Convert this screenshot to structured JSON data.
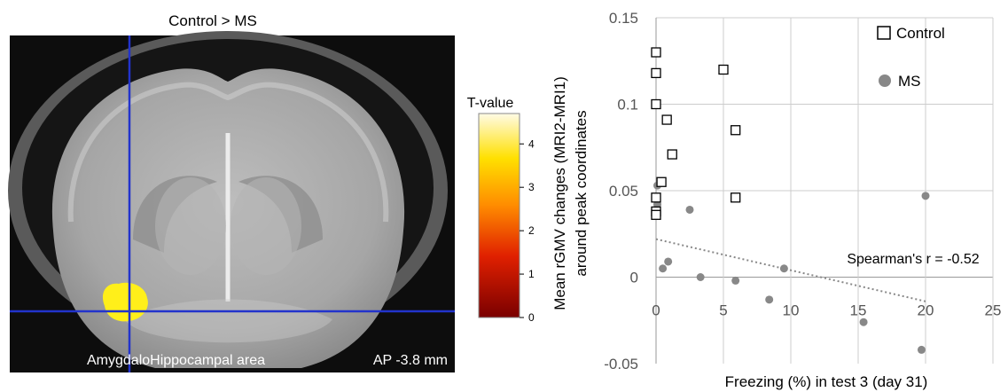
{
  "panel_left": {
    "title": "Control > MS",
    "colorbar": {
      "label": "T-value",
      "ticks": [
        "0",
        "1",
        "2",
        "3",
        "4"
      ],
      "colors": [
        "#7a0000",
        "#e02000",
        "#ff8c00",
        "#ffe000",
        "#fffbe6"
      ]
    },
    "caption_region": "AmygdaloHippocampal area",
    "caption_ap": "AP -3.8 mm",
    "crosshair_color": "#2233cc",
    "blob_color": "#ffef1a"
  },
  "chart_data": {
    "type": "scatter",
    "xlabel": "Freezing (%) in test 3 (day 31)",
    "ylabel_line1": "Mean rGMV changes (MRI2-MRI1)",
    "ylabel_line2": "around peak coordinates",
    "xlim": [
      0,
      25
    ],
    "ylim": [
      -0.05,
      0.15
    ],
    "xticks": [
      0,
      5,
      10,
      15,
      20,
      25
    ],
    "yticks": [
      -0.05,
      0,
      0.05,
      0.1,
      0.15
    ],
    "ytick_labels": [
      "-0.05",
      "0",
      "0.05",
      "0.1",
      "0.15"
    ],
    "grid": true,
    "legend_position": "top-right",
    "annotation": "Spearman's r = -0.52",
    "series": [
      {
        "name": "Control",
        "marker": "open-square",
        "color": "#000000",
        "points": [
          [
            0,
            0.13
          ],
          [
            0,
            0.118
          ],
          [
            0,
            0.1
          ],
          [
            0.8,
            0.091
          ],
          [
            1.2,
            0.071
          ],
          [
            0.4,
            0.055
          ],
          [
            0,
            0.046
          ],
          [
            0,
            0.038
          ],
          [
            0,
            0.036
          ],
          [
            5,
            0.12
          ],
          [
            5.9,
            0.085
          ],
          [
            5.9,
            0.046
          ]
        ]
      },
      {
        "name": "MS",
        "marker": "filled-circle",
        "color": "#888888",
        "points": [
          [
            0.1,
            0.053
          ],
          [
            0.1,
            0.042
          ],
          [
            2.5,
            0.039
          ],
          [
            0.5,
            0.005
          ],
          [
            0.9,
            0.009
          ],
          [
            3.3,
            0.0
          ],
          [
            5.9,
            -0.002
          ],
          [
            8.4,
            -0.013
          ],
          [
            9.5,
            0.005
          ],
          [
            15.4,
            -0.026
          ],
          [
            19.7,
            -0.042
          ],
          [
            20,
            0.047
          ]
        ]
      }
    ],
    "trendline": {
      "style": "dotted",
      "color": "#888888",
      "points": [
        [
          0,
          0.022
        ],
        [
          20,
          -0.014
        ]
      ]
    }
  }
}
